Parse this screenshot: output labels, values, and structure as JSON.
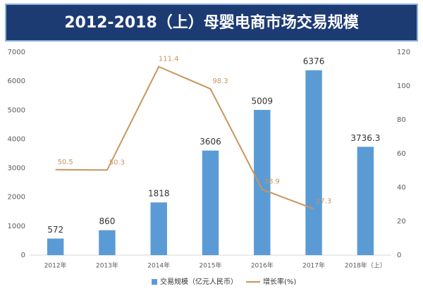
{
  "chart_data": {
    "type": "bar_line",
    "title": "2012-2018（上）母婴电商市场交易规模",
    "categories": [
      "2012年",
      "2013年",
      "2014年",
      "2015年",
      "2016年",
      "2017年",
      "2018年（上）"
    ],
    "series": [
      {
        "name": "交易规模（亿元人民币）",
        "color": "#5b9bd5",
        "type": "bar",
        "values": [
          572,
          860,
          1818,
          3606,
          5009,
          6376,
          3736.3
        ]
      },
      {
        "name": "增长率(%)",
        "color": "#c8955e",
        "type": "line",
        "axis": "y2",
        "values": [
          50.5,
          50.3,
          111.4,
          98.3,
          38.9,
          27.3,
          null
        ]
      }
    ],
    "ylim": [
      0,
      7000
    ],
    "yticks": [
      0,
      1000,
      2000,
      3000,
      4000,
      5000,
      6000,
      7000
    ],
    "y2lim": [
      0,
      120
    ],
    "y2ticks": [
      0,
      20,
      40,
      60,
      80,
      100,
      120
    ],
    "legend": "bottom"
  }
}
